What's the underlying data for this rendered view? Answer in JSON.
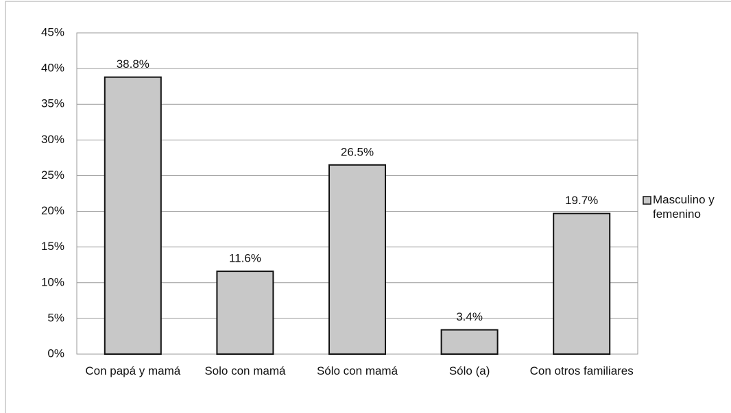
{
  "chart_data": {
    "type": "bar",
    "categories": [
      "Con papá y mamá",
      "Solo con mamá",
      "Sólo con mamá",
      "Sólo (a)",
      "Con otros familiares"
    ],
    "series": [
      {
        "name": "Masculino y femenino",
        "color": "#c8c8c8",
        "values": [
          38.8,
          11.6,
          26.5,
          3.4,
          19.7
        ],
        "value_labels": [
          "38.8%",
          "11.6%",
          "26.5%",
          "3.4%",
          "19.7%"
        ]
      }
    ],
    "ylim": [
      0,
      45
    ],
    "yticks": [
      {
        "value": 0,
        "label": "0%"
      },
      {
        "value": 5,
        "label": "5%"
      },
      {
        "value": 10,
        "label": "10%"
      },
      {
        "value": 15,
        "label": "15%"
      },
      {
        "value": 20,
        "label": "20%"
      },
      {
        "value": 25,
        "label": "25%"
      },
      {
        "value": 30,
        "label": "30%"
      },
      {
        "value": 35,
        "label": "35%"
      },
      {
        "value": 40,
        "label": "40%"
      },
      {
        "value": 45,
        "label": "45%"
      }
    ],
    "grid": true,
    "legend": "right"
  }
}
